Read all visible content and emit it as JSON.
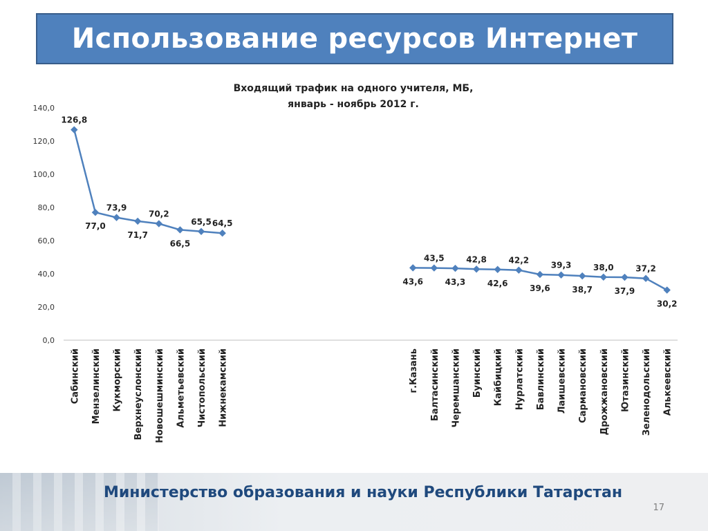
{
  "slide": {
    "title": "Использование ресурсов Интернет",
    "footer": "Министерство образования и науки Республики Татарстан",
    "page_number": "17"
  },
  "chart_data": {
    "type": "line",
    "title_line1": "Входящий трафик на одного учителя, МБ,",
    "title_line2": "январь - ноябрь 2012 г.",
    "ylim": [
      0,
      140
    ],
    "y_ticks": [
      "0,0",
      "20,0",
      "40,0",
      "60,0",
      "80,0",
      "100,0",
      "120,0",
      "140,0"
    ],
    "grid": false,
    "line_color": "#4f81bd",
    "categories": [
      "Сабинский",
      "Мензелинский",
      "Кукморский",
      "Верхнеуслонский",
      "Новошешминский",
      "Альметьевский",
      "Чистопольский",
      "Нижнекамский",
      "",
      "",
      "",
      "",
      "",
      "",
      "",
      "",
      "г.Казань",
      "Балтасинский",
      "Черемшанский",
      "Буинский",
      "Кайбицкий",
      "Нурлатский",
      "Бавлинский",
      "Лаишевский",
      "Сармановский",
      "Дрожжановский",
      "Ютазинский",
      "Зеленодольский",
      "Алькеевский"
    ],
    "values": [
      126.8,
      77.0,
      73.9,
      71.7,
      70.2,
      66.5,
      65.5,
      64.5,
      null,
      null,
      null,
      null,
      null,
      null,
      null,
      null,
      43.6,
      43.5,
      43.3,
      42.8,
      42.6,
      42.2,
      39.6,
      39.3,
      38.7,
      38.0,
      37.9,
      37.2,
      30.2
    ],
    "value_labels": [
      "126,8",
      "77,0",
      "73,9",
      "71,7",
      "70,2",
      "66,5",
      "65,5",
      "64,5",
      "",
      "",
      "",
      "",
      "",
      "",
      "",
      "",
      "43,6",
      "43,5",
      "43,3",
      "42,8",
      "42,6",
      "42,2",
      "39,6",
      "39,3",
      "38,7",
      "38,0",
      "37,9",
      "37,2",
      "30,2"
    ],
    "label_positions": [
      "above",
      "below",
      "above",
      "below",
      "above",
      "below",
      "above",
      "above",
      "",
      "",
      "",
      "",
      "",
      "",
      "",
      "",
      "below",
      "above",
      "below",
      "above",
      "below",
      "above",
      "below",
      "above",
      "below",
      "above",
      "below",
      "above",
      "below"
    ]
  }
}
